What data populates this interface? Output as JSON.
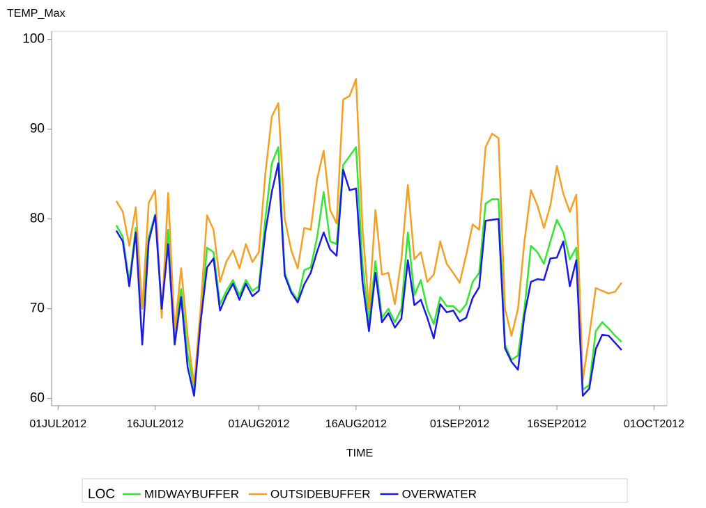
{
  "chart_data": {
    "type": "line",
    "y_label": "TEMP_Max",
    "x_label": "TIME",
    "legend_title": "LOC",
    "x": [
      "2012-07-10",
      "2012-07-11",
      "2012-07-12",
      "2012-07-13",
      "2012-07-14",
      "2012-07-15",
      "2012-07-16",
      "2012-07-17",
      "2012-07-18",
      "2012-07-19",
      "2012-07-20",
      "2012-07-21",
      "2012-07-22",
      "2012-07-23",
      "2012-07-24",
      "2012-07-25",
      "2012-07-26",
      "2012-07-27",
      "2012-07-28",
      "2012-07-29",
      "2012-07-30",
      "2012-07-31",
      "2012-08-01",
      "2012-08-02",
      "2012-08-03",
      "2012-08-04",
      "2012-08-05",
      "2012-08-06",
      "2012-08-07",
      "2012-08-08",
      "2012-08-09",
      "2012-08-10",
      "2012-08-11",
      "2012-08-12",
      "2012-08-13",
      "2012-08-14",
      "2012-08-15",
      "2012-08-16",
      "2012-08-17",
      "2012-08-18",
      "2012-08-19",
      "2012-08-20",
      "2012-08-21",
      "2012-08-22",
      "2012-08-23",
      "2012-08-24",
      "2012-08-25",
      "2012-08-26",
      "2012-08-27",
      "2012-08-28",
      "2012-08-29",
      "2012-08-30",
      "2012-08-31",
      "2012-09-01",
      "2012-09-02",
      "2012-09-03",
      "2012-09-04",
      "2012-09-05",
      "2012-09-06",
      "2012-09-07",
      "2012-09-08",
      "2012-09-09",
      "2012-09-10",
      "2012-09-11",
      "2012-09-12",
      "2012-09-13",
      "2012-09-14",
      "2012-09-15",
      "2012-09-16",
      "2012-09-17",
      "2012-09-18",
      "2012-09-19",
      "2012-09-20",
      "2012-09-21",
      "2012-09-22",
      "2012-09-23",
      "2012-09-24",
      "2012-09-25",
      "2012-09-26"
    ],
    "series": [
      {
        "name": "MIDWAYBUFFER",
        "color": "#33e633",
        "values": [
          79.3,
          78,
          73,
          79,
          70,
          78,
          80.5,
          70,
          78.8,
          67,
          72.2,
          65,
          61,
          69,
          76.8,
          76.3,
          70.5,
          72,
          73.2,
          71.5,
          73.2,
          72,
          72.5,
          80,
          86.2,
          88,
          74,
          72,
          71,
          74.3,
          74.6,
          78,
          83,
          77.5,
          77.2,
          86,
          87,
          88,
          75,
          68.5,
          75.3,
          69,
          70,
          68.5,
          70,
          78.5,
          71.5,
          73.2,
          70,
          68.3,
          71.3,
          70.3,
          70.3,
          69.6,
          70.5,
          73,
          74,
          81.7,
          82.2,
          82.2,
          66,
          64.3,
          64.8,
          70,
          77,
          76.3,
          75,
          77.5,
          79.9,
          78.5,
          75.5,
          76.8,
          61,
          61.5,
          67.5,
          68.5,
          67.8,
          67,
          66.3
        ]
      },
      {
        "name": "OUTSIDEBUFFER",
        "color": "#f5a023",
        "values": [
          82,
          80.8,
          77,
          81.3,
          70,
          81.8,
          83.2,
          69,
          82.9,
          67.5,
          74.5,
          67,
          61.5,
          70,
          80.4,
          78.8,
          73,
          75.3,
          76.5,
          74.5,
          77.2,
          75.2,
          76.3,
          85,
          91.4,
          92.9,
          80,
          76.5,
          74.5,
          79,
          78.8,
          84.5,
          87.6,
          81,
          79.5,
          93.3,
          93.7,
          95.6,
          79,
          70,
          81,
          73.8,
          74,
          70.5,
          75.5,
          83.8,
          75.5,
          76.3,
          73,
          73.8,
          77.5,
          75,
          74,
          72.9,
          76,
          79.4,
          78.8,
          88,
          89.5,
          89,
          70,
          67,
          70,
          77.5,
          83.2,
          81.5,
          79,
          81.5,
          85.9,
          82.8,
          80.8,
          82.7,
          62,
          67,
          72.3,
          72,
          71.7,
          71.9,
          72.9
        ]
      },
      {
        "name": "OVERWATER",
        "color": "#1a1ae6",
        "values": [
          78.7,
          77.5,
          72.5,
          78.5,
          66,
          77.5,
          80.4,
          70,
          77.2,
          66,
          71.3,
          63.5,
          60.3,
          68.5,
          74.6,
          75.6,
          69.8,
          71.5,
          72.8,
          71,
          72.8,
          71.4,
          72,
          78.5,
          83,
          86.2,
          73.7,
          71.8,
          70.7,
          72.7,
          74,
          76.4,
          78.5,
          76.6,
          75.9,
          85.5,
          83.2,
          83.4,
          73,
          67.5,
          74,
          68.5,
          69.5,
          67.9,
          68.9,
          75.4,
          70.4,
          71,
          69,
          66.7,
          70.5,
          69.6,
          69.8,
          68.6,
          69,
          71.2,
          72.4,
          79.8,
          79.9,
          80,
          65.6,
          64.1,
          63.2,
          69.3,
          73,
          73.3,
          73.2,
          75.6,
          75.7,
          77.5,
          72.5,
          75.4,
          60.3,
          61.1,
          65.5,
          67.1,
          67,
          66.2,
          65.4
        ]
      }
    ],
    "xlim": [
      "2012-06-30",
      "2012-10-03"
    ],
    "xticks": [
      {
        "value": "2012-07-01",
        "label": "01JUL2012"
      },
      {
        "value": "2012-07-16",
        "label": "16JUL2012"
      },
      {
        "value": "2012-08-01",
        "label": "01AUG2012"
      },
      {
        "value": "2012-08-16",
        "label": "16AUG2012"
      },
      {
        "value": "2012-09-01",
        "label": "01SEP2012"
      },
      {
        "value": "2012-09-16",
        "label": "16SEP2012"
      },
      {
        "value": "2012-10-01",
        "label": "01OCT2012"
      }
    ],
    "ylim": [
      59.2,
      100.9
    ],
    "yticks": [
      60,
      70,
      80,
      90,
      100
    ],
    "grid": false
  }
}
